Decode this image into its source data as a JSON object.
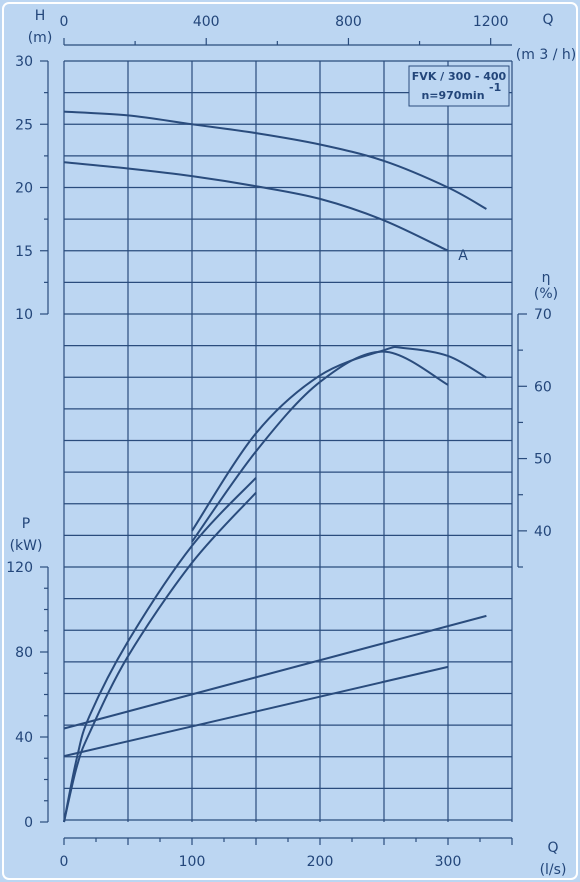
{
  "chart_data": {
    "type": "line",
    "colors": {
      "background": "#bcd6f2",
      "ink": "#2a4c7d",
      "grid": "#2a4c7d"
    },
    "grid": true,
    "axes": {
      "q_ls": {
        "label": "Q",
        "unit": "(l/s)",
        "range": [
          0,
          350
        ],
        "ticks": [
          0,
          100,
          200,
          300
        ]
      },
      "q_m3h": {
        "label": "Q",
        "unit": "(m 3 / h)",
        "range": [
          0,
          1260
        ],
        "ticks": [
          0,
          400,
          800,
          1200
        ]
      },
      "head": {
        "label": "H",
        "unit": "(m)",
        "range": [
          10,
          30
        ],
        "ticks": [
          10,
          15,
          20,
          25,
          30
        ]
      },
      "efficiency": {
        "label": "η",
        "unit": "(%)",
        "range": [
          35,
          70
        ],
        "ticks": [
          40,
          50,
          60,
          70
        ]
      },
      "power": {
        "label": "P",
        "unit": "(kW)",
        "range": [
          0,
          120
        ],
        "ticks": [
          0,
          40,
          80,
          120
        ]
      }
    },
    "annotation": {
      "line1": "FVK / 300 - 400",
      "line2": "n=970min",
      "line2_sup": "-1"
    },
    "curve_label": "A",
    "series": [
      {
        "axis": "head",
        "x": [
          0,
          50,
          100,
          150,
          200,
          250,
          300,
          330
        ],
        "y": [
          26,
          25.7,
          25.0,
          24.3,
          23.4,
          22.1,
          20.0,
          18.3
        ]
      },
      {
        "axis": "head",
        "label": "A",
        "x": [
          0,
          50,
          100,
          150,
          200,
          250,
          300
        ],
        "y": [
          22,
          21.5,
          20.9,
          20.1,
          19.1,
          17.4,
          15.0
        ]
      },
      {
        "axis": "efficiency",
        "x": [
          100,
          150,
          200,
          250,
          265,
          300,
          330
        ],
        "y": [
          40,
          53.5,
          61.5,
          65.0,
          65.3,
          64.2,
          61.2
        ]
      },
      {
        "axis": "efficiency",
        "x": [
          100,
          150,
          200,
          250,
          300
        ],
        "y": [
          38.5,
          51,
          60.6,
          64.8,
          60.2
        ]
      },
      {
        "axis": "power",
        "x": [
          0,
          10,
          20,
          50,
          100,
          150
        ],
        "y": [
          0,
          30,
          50,
          85,
          130,
          162
        ]
      },
      {
        "axis": "power",
        "x": [
          0,
          10,
          20,
          50,
          100,
          150
        ],
        "y": [
          0,
          26,
          42,
          78,
          122,
          155
        ]
      },
      {
        "axis": "power",
        "x": [
          0,
          330
        ],
        "y": [
          44,
          97
        ]
      },
      {
        "axis": "power",
        "x": [
          0,
          300
        ],
        "y": [
          31,
          73
        ]
      }
    ]
  }
}
